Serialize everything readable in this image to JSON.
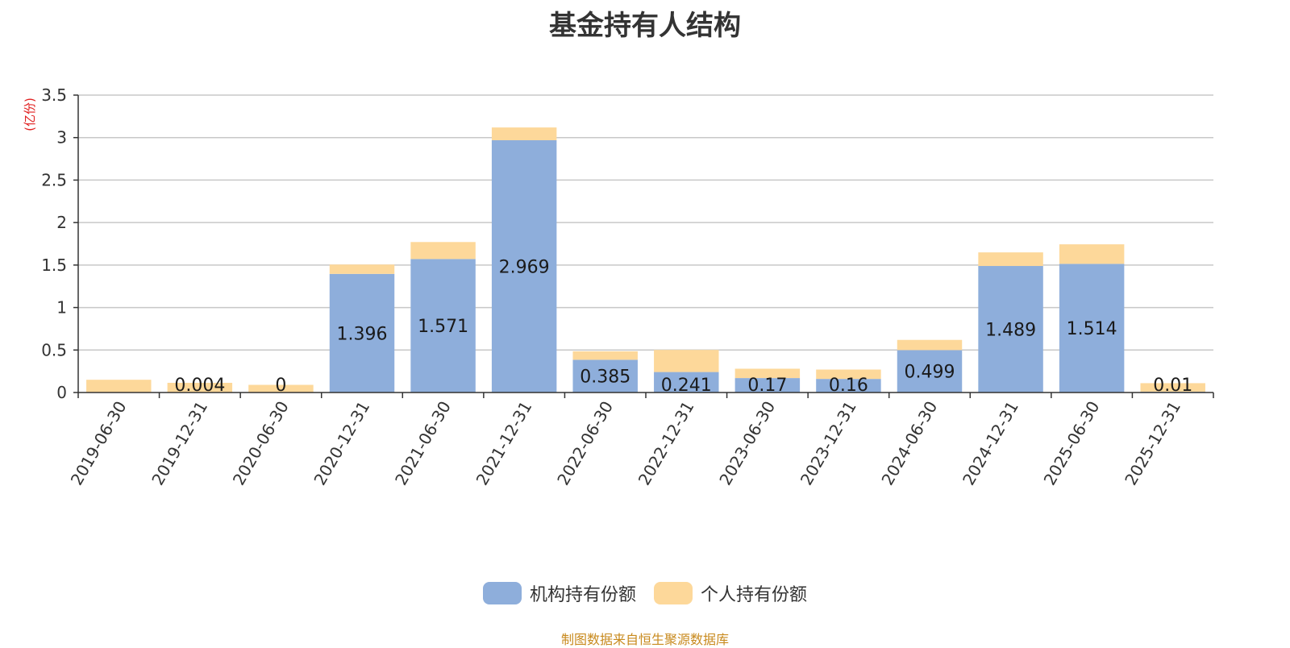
{
  "chart_data": {
    "type": "bar",
    "stacked": true,
    "title": "基金持有人结构",
    "ylabel": "(亿份)",
    "xlabel": "",
    "ylim": [
      0,
      3.5
    ],
    "yticks": [
      "0",
      "0.5",
      "1",
      "1.5",
      "2",
      "2.5",
      "3",
      "3.5"
    ],
    "ytick_values": [
      0,
      0.5,
      1,
      1.5,
      2,
      2.5,
      3,
      3.5
    ],
    "categories": [
      "2019-06-30",
      "2019-12-31",
      "2020-06-30",
      "2020-12-31",
      "2021-06-30",
      "2021-12-31",
      "2022-06-30",
      "2022-12-31",
      "2023-06-30",
      "2023-12-31",
      "2024-06-30",
      "2024-12-31",
      "2025-06-30",
      "2025-12-31"
    ],
    "series": [
      {
        "name": "机构持有份额",
        "color": "#8eaedb",
        "values": [
          0,
          0.004,
          0,
          1.396,
          1.571,
          2.969,
          0.385,
          0.241,
          0.17,
          0.16,
          0.499,
          1.489,
          1.514,
          0.01
        ],
        "labels": [
          "",
          "0.004",
          "0",
          "1.396",
          "1.571",
          "2.969",
          "0.385",
          "0.241",
          "0.17",
          "0.16",
          "0.499",
          "1.489",
          "1.514",
          "0.01"
        ]
      },
      {
        "name": "个人持有份额",
        "color": "#fdd89a",
        "values": [
          0.15,
          0.11,
          0.09,
          0.11,
          0.2,
          0.15,
          0.1,
          0.26,
          0.11,
          0.11,
          0.12,
          0.16,
          0.23,
          0.1
        ]
      }
    ],
    "legend_position": "bottom-center",
    "grid": true
  },
  "source_note": "制图数据来自恒生聚源数据库"
}
